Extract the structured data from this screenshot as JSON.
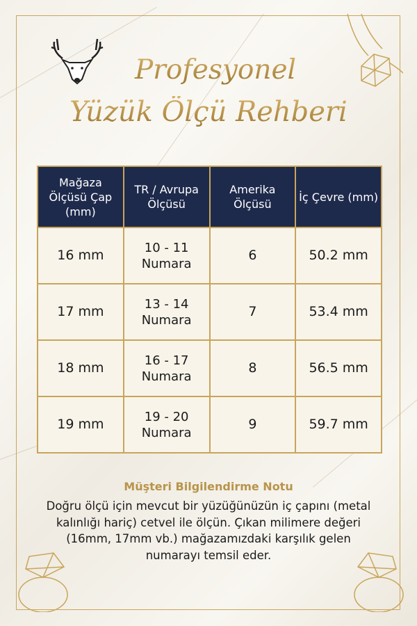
{
  "title": {
    "line1": "Profesyonel",
    "line2": "Yüzük Ölçü Rehberi"
  },
  "colors": {
    "gold": "#c9a55a",
    "navy": "#1e2a4c",
    "cell": "#f8f4ea"
  },
  "table": {
    "headers": [
      "Mağaza Ölçüsü Çap (mm)",
      "TR / Avrupa Ölçüsü",
      "Amerika Ölçüsü",
      "İç Çevre (mm)"
    ],
    "rows": [
      {
        "store": "16 mm",
        "tr_eu": "10 - 11 Numara",
        "us": "6",
        "circumference": "50.2 mm"
      },
      {
        "store": "17 mm",
        "tr_eu": "13 - 14 Numara",
        "us": "7",
        "circumference": "53.4 mm"
      },
      {
        "store": "18 mm",
        "tr_eu": "16 - 17 Numara",
        "us": "8",
        "circumference": "56.5 mm"
      },
      {
        "store": "19 mm",
        "tr_eu": "19 - 20 Numara",
        "us": "9",
        "circumference": "59.7 mm"
      }
    ]
  },
  "note": {
    "title": "Müşteri Bilgilendirme Notu",
    "text": "Doğru ölçü için mevcut bir yüzüğünüzün iç çapını (metal kalınlığı hariç) cetvel ile ölçün. Çıkan milimere değeri (16mm,  17mm vb.) mağazamızdaki karşılık gelen numarayı temsil eder."
  },
  "icons": [
    "deer-logo-icon",
    "ring-illustration-icon"
  ]
}
